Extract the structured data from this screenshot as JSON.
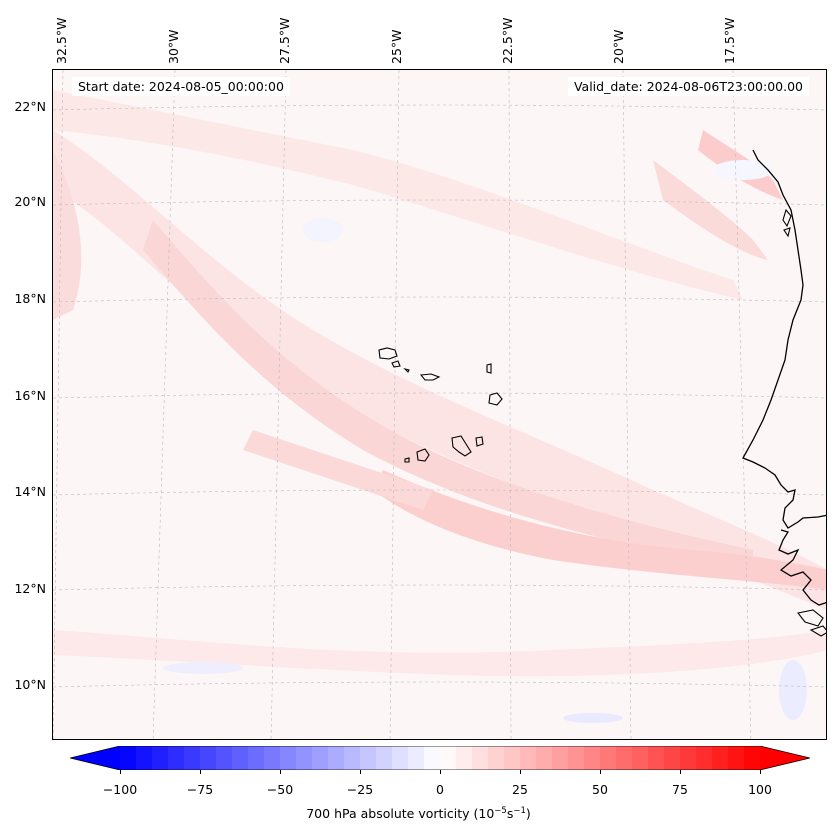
{
  "map": {
    "start_label": "Start date: 2024-08-05_00:00:00",
    "valid_label": "Valid_date: 2024-08-06T23:00:00.00",
    "longitude_labels": [
      "32.5°W",
      "30°W",
      "27.5°W",
      "25°W",
      "22.5°W",
      "20°W",
      "17.5°W"
    ],
    "latitude_labels": [
      "22°N",
      "20°N",
      "18°N",
      "16°N",
      "14°N",
      "12°N",
      "10°N"
    ],
    "variable": "700 hPa absolute vorticity"
  },
  "colorbar": {
    "ticks": [
      "−100",
      "−75",
      "−50",
      "−25",
      "0",
      "25",
      "50",
      "75",
      "100"
    ],
    "label_prefix": "700 hPa absolute vorticity (10",
    "label_exp1": "−5",
    "label_mid": "s",
    "label_exp2": "−1",
    "label_suffix": ")",
    "min": -100,
    "max": 100,
    "colors": {
      "negative": "#0000ff",
      "zero": "#ffffff",
      "positive": "#ff0000"
    }
  }
}
